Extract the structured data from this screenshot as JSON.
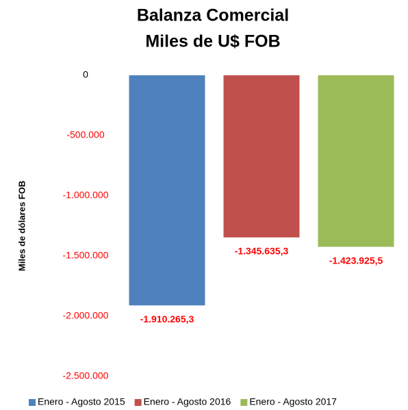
{
  "chart_data": {
    "type": "bar",
    "title": "Balanza Comercial",
    "subtitle": "Miles de U$ FOB",
    "y_label": "Miles de dólares FOB",
    "categories": [
      null
    ],
    "series": [
      {
        "name": "Enero - Agosto 2015",
        "color": "#4f81bd",
        "values": [
          -1910265.3
        ],
        "value_labels": [
          "-1.910.265,3"
        ]
      },
      {
        "name": "Enero - Agosto 2016",
        "color": "#c0504d",
        "values": [
          -1345635.3
        ],
        "value_labels": [
          "-1.345.635,3"
        ]
      },
      {
        "name": "Enero - Agosto 2017",
        "color": "#9bbb59",
        "values": [
          -1423925.5
        ],
        "value_labels": [
          "-1.423.925,5"
        ]
      }
    ],
    "ylim": [
      -2500000,
      0
    ],
    "yticks": [
      0,
      {
        "value": -500000,
        "label": "-500.000"
      },
      {
        "value": -1000000,
        "label": "-1.000.000"
      },
      {
        "value": -1500000,
        "label": "-1.500.000"
      },
      {
        "value": -2000000,
        "label": "-2.000.000"
      },
      {
        "value": -2500000,
        "label": "-2.500.000"
      }
    ],
    "negative_color": "#ff0000",
    "grid": false,
    "legend": "bottom"
  }
}
